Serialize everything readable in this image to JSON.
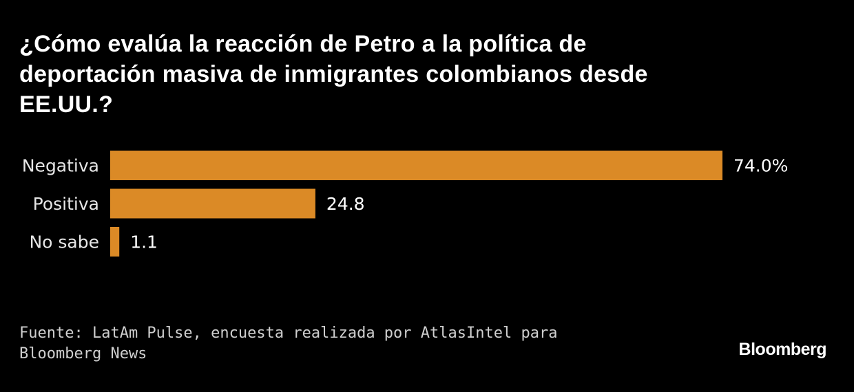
{
  "chart_data": {
    "type": "bar",
    "orientation": "horizontal",
    "title": "¿Cómo evalúa la reacción de Petro a la política de deportación masiva de inmigrantes colombianos desde EE.UU.?",
    "categories": [
      "Negativa",
      "Positiva",
      "No sabe"
    ],
    "values": [
      74.0,
      24.8,
      1.1
    ],
    "value_labels": [
      "74.0%",
      "24.8",
      "1.1"
    ],
    "unit": "%",
    "xlim": [
      0,
      74
    ],
    "grid": false,
    "bar_color": "#DB8A26"
  },
  "source": "Fuente: LatAm Pulse, encuesta realizada por AtlasIntel para Bloomberg News",
  "logo": "Bloomberg"
}
